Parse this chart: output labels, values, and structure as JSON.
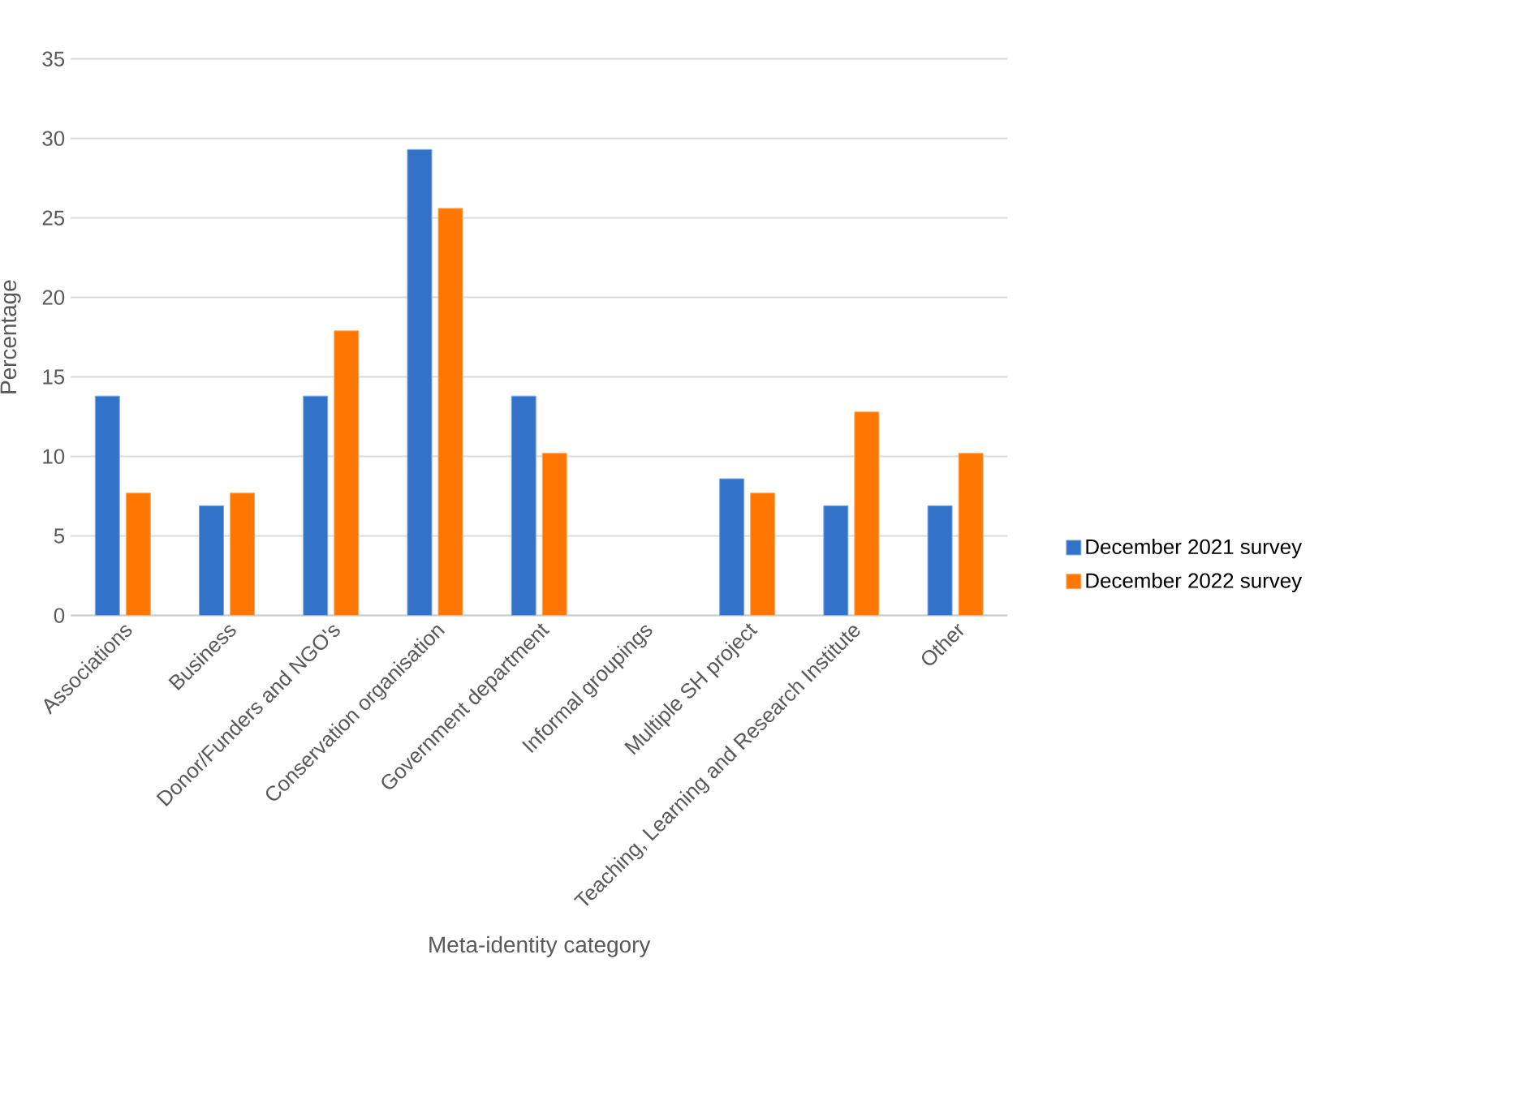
{
  "chart_data": {
    "type": "bar",
    "xlabel": "Meta-identity category",
    "ylabel": "Percentage",
    "categories": [
      "Associations",
      "Business",
      "Donor/Funders and NGO's",
      "Conservation organisation",
      "Government department",
      "Informal groupings",
      "Multiple SH project",
      "Teaching, Learning and Research Institute",
      "Other"
    ],
    "series": [
      {
        "name": "December 2021 survey",
        "color": "#3372c9",
        "values": [
          13.8,
          6.9,
          13.8,
          29.3,
          13.8,
          null,
          8.6,
          6.9,
          6.9
        ]
      },
      {
        "name": "December 2022 survey",
        "color": "#ff7700",
        "values": [
          7.7,
          7.7,
          17.9,
          25.6,
          10.2,
          null,
          7.7,
          12.8,
          10.2
        ]
      }
    ],
    "ylim": [
      0,
      35
    ],
    "yticks": [
      0,
      5,
      10,
      15,
      20,
      25,
      30,
      35
    ],
    "grid": "y",
    "legend": "right"
  }
}
